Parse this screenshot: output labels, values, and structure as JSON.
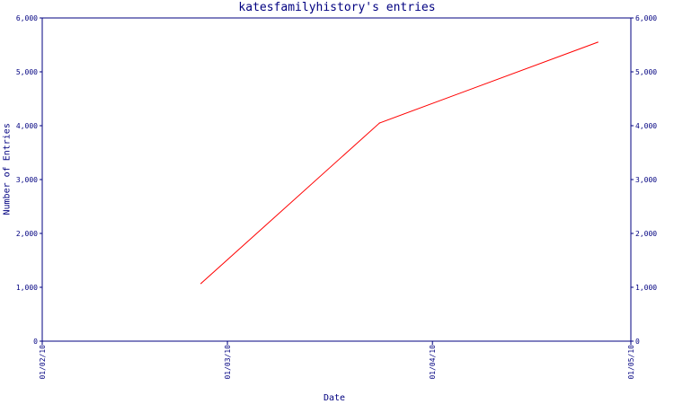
{
  "chart_data": {
    "type": "line",
    "title": "katesfamilyhistory's entries",
    "xlabel": "Date",
    "ylabel": "Number of Entries",
    "x_ticks": [
      "01/02/10",
      "01/03/10",
      "01/04/10",
      "01/05/10"
    ],
    "ylim": [
      0,
      6000
    ],
    "y_ticks": [
      "0",
      "1,000",
      "2,000",
      "3,000",
      "4,000",
      "5,000",
      "6,000"
    ],
    "y_tick_values": [
      0,
      1000,
      2000,
      3000,
      4000,
      5000,
      6000
    ],
    "series": [
      {
        "color": "#ff0000",
        "points": [
          {
            "x": "2010-02-25",
            "y": 1070
          },
          {
            "x": "2010-03-24",
            "y": 4050
          },
          {
            "x": "2010-04-26",
            "y": 5550
          }
        ]
      }
    ],
    "axis_color": "#000080",
    "grid": false,
    "legend": "none"
  }
}
